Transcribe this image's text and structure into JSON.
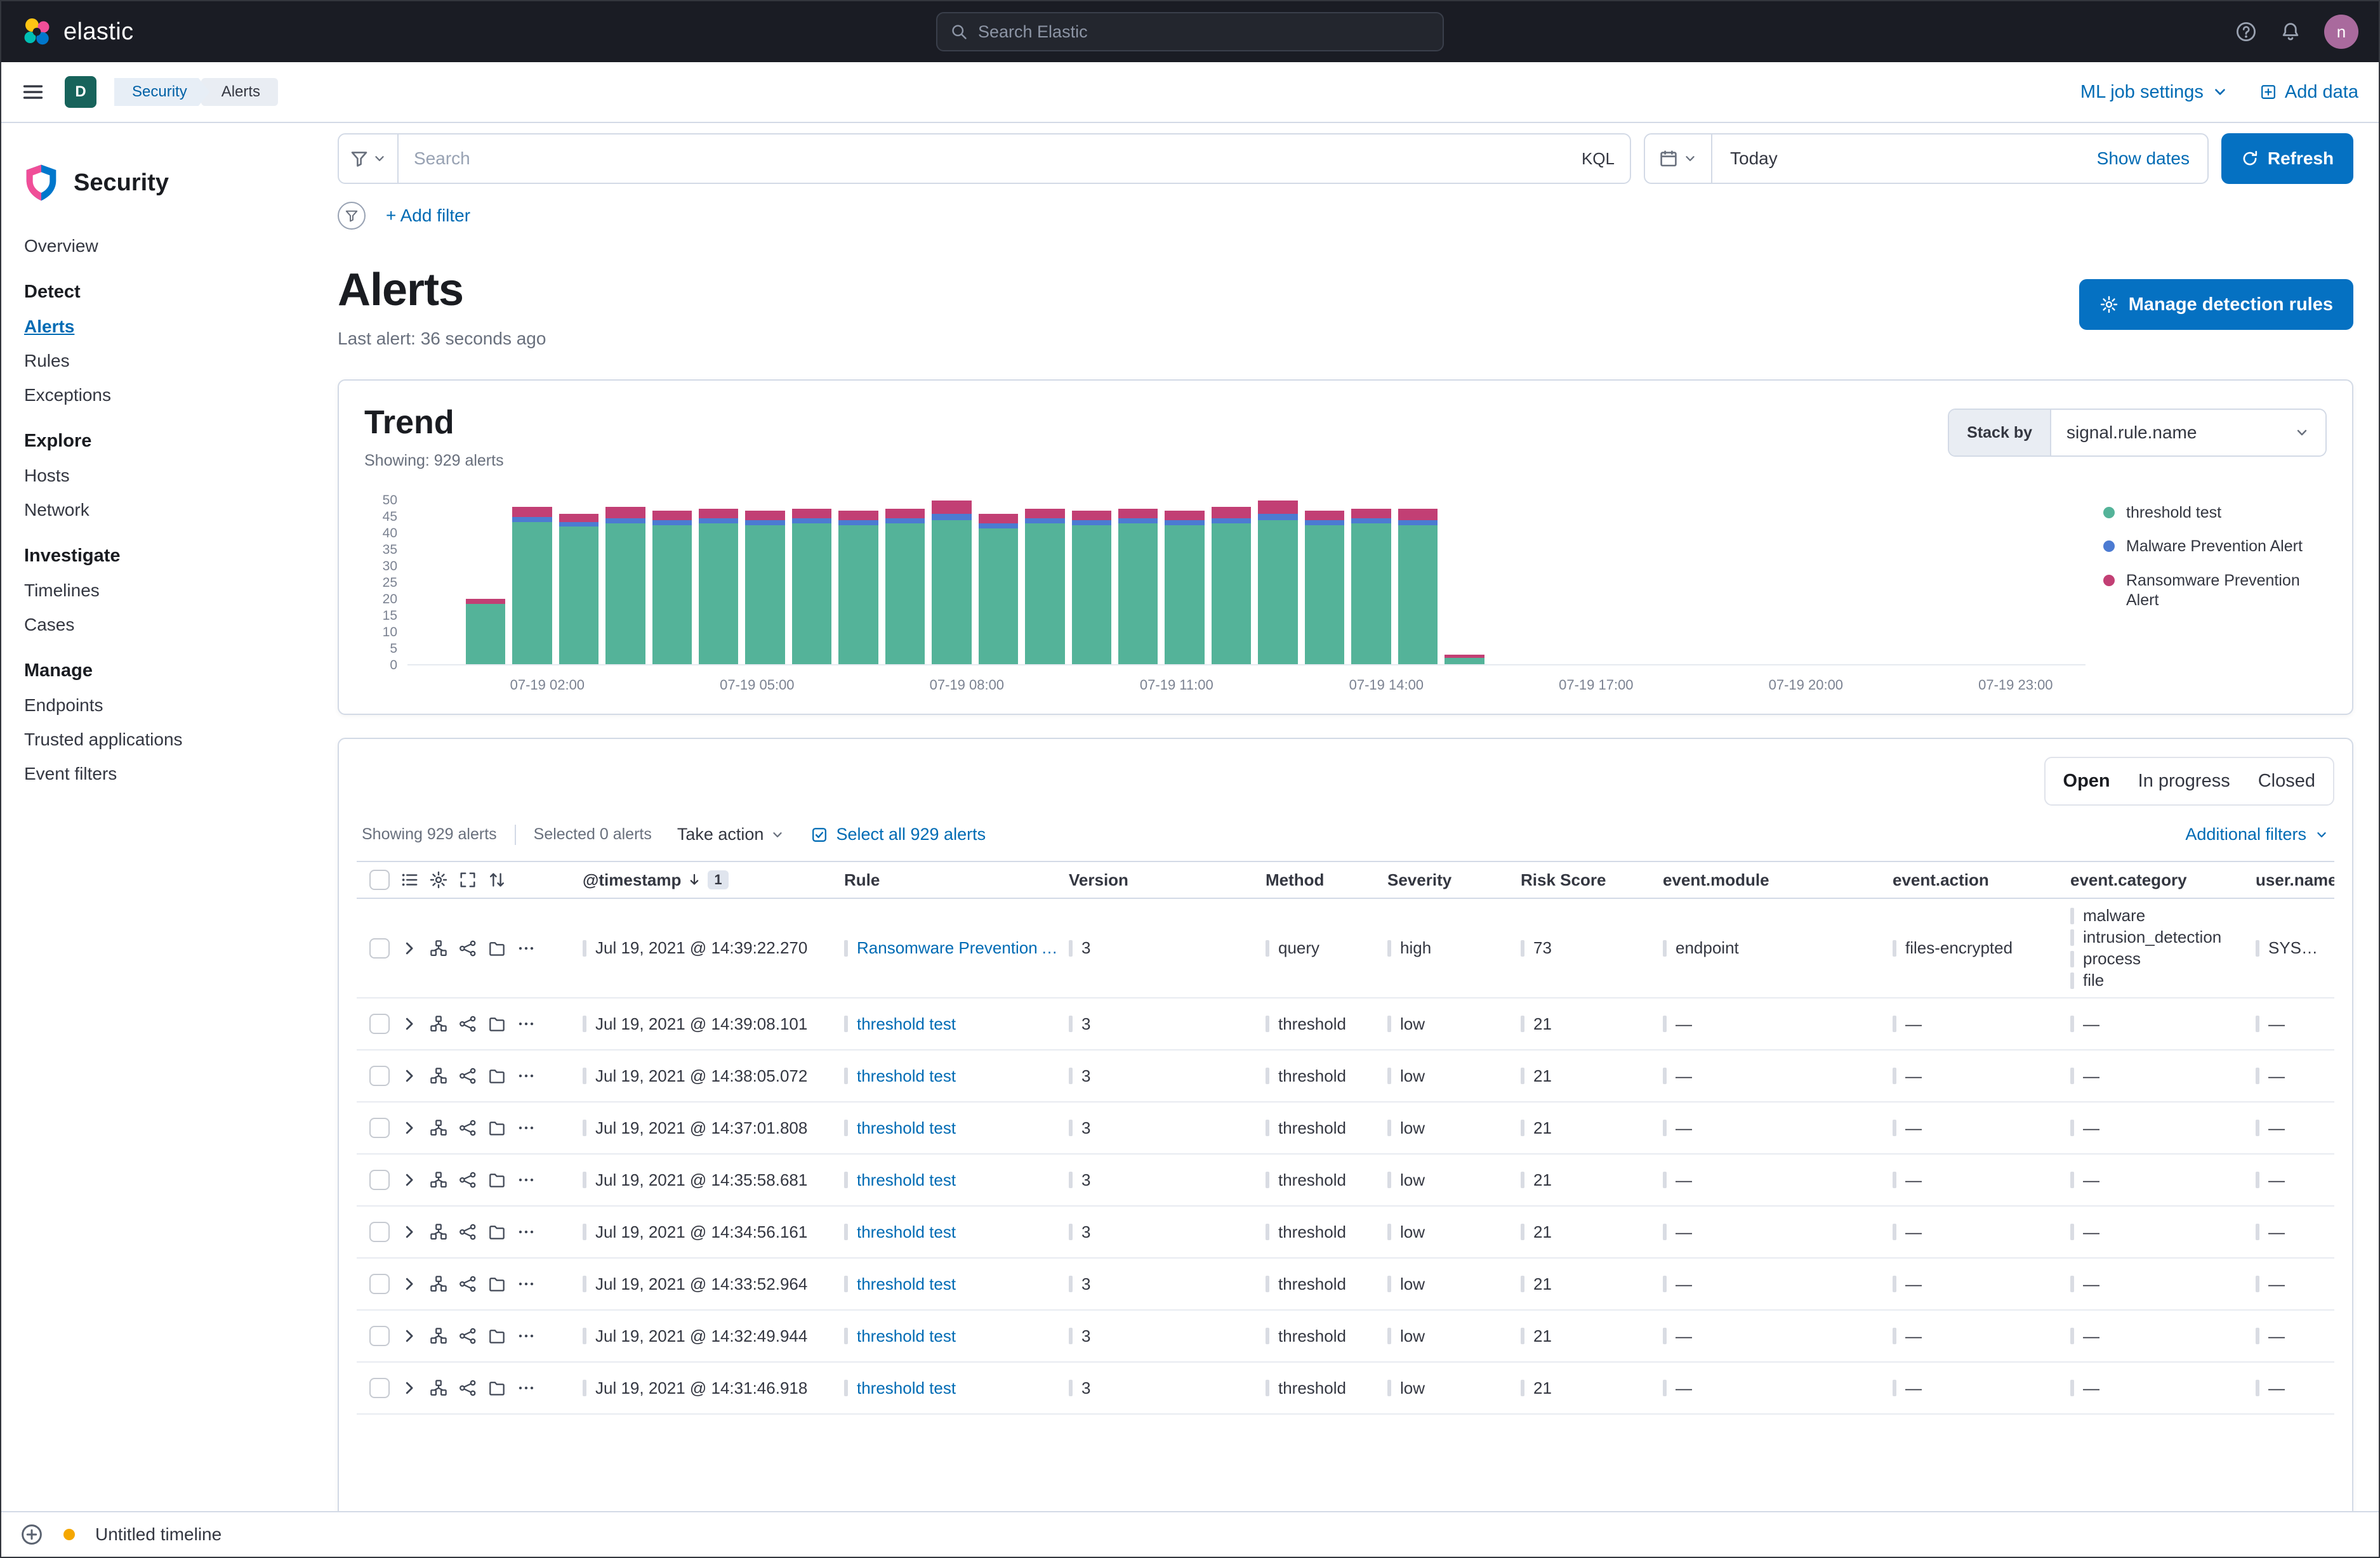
{
  "colors": {
    "primary": "#006BB4",
    "fill_button": "#0571C2",
    "amber": "#F5A700"
  },
  "topbar": {
    "brand": "elastic",
    "search_placeholder": "Search Elastic",
    "avatar_initial": "n"
  },
  "navbar": {
    "deployment_initial": "D",
    "breadcrumbs": [
      "Security",
      "Alerts"
    ],
    "ml_job_settings": "ML job settings",
    "add_data": "Add data"
  },
  "querybar": {
    "search_placeholder": "Search",
    "kql_badge": "KQL",
    "date_value": "Today",
    "show_dates": "Show dates",
    "refresh_label": "Refresh",
    "add_filter": "+ Add filter"
  },
  "sidebar": {
    "title": "Security",
    "groups": [
      {
        "heading": null,
        "items": [
          {
            "label": "Overview",
            "active": false
          }
        ]
      },
      {
        "heading": "Detect",
        "items": [
          {
            "label": "Alerts",
            "active": true
          },
          {
            "label": "Rules",
            "active": false
          },
          {
            "label": "Exceptions",
            "active": false
          }
        ]
      },
      {
        "heading": "Explore",
        "items": [
          {
            "label": "Hosts",
            "active": false
          },
          {
            "label": "Network",
            "active": false
          }
        ]
      },
      {
        "heading": "Investigate",
        "items": [
          {
            "label": "Timelines",
            "active": false
          },
          {
            "label": "Cases",
            "active": false
          }
        ]
      },
      {
        "heading": "Manage",
        "items": [
          {
            "label": "Endpoints",
            "active": false
          },
          {
            "label": "Trusted applications",
            "active": false
          },
          {
            "label": "Event filters",
            "active": false
          }
        ]
      }
    ]
  },
  "page": {
    "title": "Alerts",
    "last_alert": "Last alert: 36 seconds ago",
    "manage_rules_label": "Manage detection rules"
  },
  "trend": {
    "title": "Trend",
    "showing": "Showing: 929 alerts",
    "stack_by_label": "Stack by",
    "stack_by_value": "signal.rule.name"
  },
  "chart_data": {
    "type": "bar",
    "stacked": true,
    "title": "Trend",
    "xlabel": "",
    "ylabel": "",
    "ylim": [
      0,
      50
    ],
    "y_ticks": [
      0,
      5,
      10,
      15,
      20,
      25,
      30,
      35,
      40,
      45,
      50
    ],
    "x_domain_minutes": 1440,
    "bar_width_minutes": 40,
    "x_ticks": [
      {
        "label": "07-19 02:00",
        "minute": 120
      },
      {
        "label": "07-19 05:00",
        "minute": 300
      },
      {
        "label": "07-19 08:00",
        "minute": 480
      },
      {
        "label": "07-19 11:00",
        "minute": 660
      },
      {
        "label": "07-19 14:00",
        "minute": 840
      },
      {
        "label": "07-19 17:00",
        "minute": 1020
      },
      {
        "label": "07-19 20:00",
        "minute": 1200
      },
      {
        "label": "07-19 23:00",
        "minute": 1380
      }
    ],
    "series": [
      {
        "key": "t",
        "name": "threshold test",
        "color": "#54B399"
      },
      {
        "key": "m",
        "name": "Malware Prevention Alert",
        "color": "#4C7BD2"
      },
      {
        "key": "r",
        "name": "Ransomware Prevention Alert",
        "color": "#C23F74"
      }
    ],
    "bars": [
      {
        "minute": 50,
        "t": 18.5,
        "m": 0,
        "r": 1.5
      },
      {
        "minute": 90,
        "t": 43.5,
        "m": 1.5,
        "r": 3
      },
      {
        "minute": 130,
        "t": 42,
        "m": 1.5,
        "r": 2.5
      },
      {
        "minute": 170,
        "t": 43,
        "m": 1.5,
        "r": 3.5
      },
      {
        "minute": 210,
        "t": 42.5,
        "m": 1.5,
        "r": 3
      },
      {
        "minute": 250,
        "t": 43,
        "m": 1.5,
        "r": 3
      },
      {
        "minute": 290,
        "t": 42.5,
        "m": 1.5,
        "r": 3
      },
      {
        "minute": 330,
        "t": 43,
        "m": 1.5,
        "r": 3
      },
      {
        "minute": 370,
        "t": 42.5,
        "m": 1.5,
        "r": 3
      },
      {
        "minute": 410,
        "t": 43,
        "m": 1.5,
        "r": 3
      },
      {
        "minute": 450,
        "t": 44,
        "m": 2,
        "r": 4
      },
      {
        "minute": 490,
        "t": 41.5,
        "m": 1.5,
        "r": 3
      },
      {
        "minute": 530,
        "t": 43,
        "m": 1.5,
        "r": 3
      },
      {
        "minute": 570,
        "t": 42.5,
        "m": 1.5,
        "r": 3
      },
      {
        "minute": 610,
        "t": 43,
        "m": 1.5,
        "r": 3
      },
      {
        "minute": 650,
        "t": 42.5,
        "m": 1.5,
        "r": 3
      },
      {
        "minute": 690,
        "t": 43,
        "m": 1.5,
        "r": 3.5
      },
      {
        "minute": 730,
        "t": 44,
        "m": 2,
        "r": 4
      },
      {
        "minute": 770,
        "t": 42.5,
        "m": 1.5,
        "r": 3
      },
      {
        "minute": 810,
        "t": 43,
        "m": 1.5,
        "r": 3
      },
      {
        "minute": 850,
        "t": 42.5,
        "m": 1.5,
        "r": 3.5
      },
      {
        "minute": 890,
        "t": 2,
        "m": 0,
        "r": 1
      }
    ]
  },
  "table": {
    "status_filters": [
      {
        "label": "Open",
        "active": true
      },
      {
        "label": "In progress",
        "active": false
      },
      {
        "label": "Closed",
        "active": false
      }
    ],
    "showing": "Showing 929 alerts",
    "selected": "Selected 0 alerts",
    "take_action": "Take action",
    "select_all": "Select all 929 alerts",
    "additional_filters": "Additional filters",
    "sort_count_badge": "1",
    "columns": [
      {
        "key": "timestamp",
        "label": "@timestamp",
        "sorted": "desc"
      },
      {
        "key": "rule",
        "label": "Rule"
      },
      {
        "key": "version",
        "label": "Version"
      },
      {
        "key": "method",
        "label": "Method"
      },
      {
        "key": "severity",
        "label": "Severity"
      },
      {
        "key": "risk_score",
        "label": "Risk Score"
      },
      {
        "key": "event_module",
        "label": "event.module"
      },
      {
        "key": "event_action",
        "label": "event.action"
      },
      {
        "key": "event_category",
        "label": "event.category"
      },
      {
        "key": "user_name",
        "label": "user.name"
      }
    ],
    "rows": [
      {
        "timestamp": "Jul 19, 2021 @ 14:39:22.270",
        "rule": "Ransomware Prevention A...",
        "version": "3",
        "method": "query",
        "severity": "high",
        "risk_score": "73",
        "event_module": "endpoint",
        "event_action": "files-encrypted",
        "event_category": [
          "malware",
          "intrusion_detection",
          "process",
          "file"
        ],
        "user_name": "SYSTEM"
      },
      {
        "timestamp": "Jul 19, 2021 @ 14:39:08.101",
        "rule": "threshold test",
        "version": "3",
        "method": "threshold",
        "severity": "low",
        "risk_score": "21",
        "event_module": "—",
        "event_action": "—",
        "event_category": [
          "—"
        ],
        "user_name": "—"
      },
      {
        "timestamp": "Jul 19, 2021 @ 14:38:05.072",
        "rule": "threshold test",
        "version": "3",
        "method": "threshold",
        "severity": "low",
        "risk_score": "21",
        "event_module": "—",
        "event_action": "—",
        "event_category": [
          "—"
        ],
        "user_name": "—"
      },
      {
        "timestamp": "Jul 19, 2021 @ 14:37:01.808",
        "rule": "threshold test",
        "version": "3",
        "method": "threshold",
        "severity": "low",
        "risk_score": "21",
        "event_module": "—",
        "event_action": "—",
        "event_category": [
          "—"
        ],
        "user_name": "—"
      },
      {
        "timestamp": "Jul 19, 2021 @ 14:35:58.681",
        "rule": "threshold test",
        "version": "3",
        "method": "threshold",
        "severity": "low",
        "risk_score": "21",
        "event_module": "—",
        "event_action": "—",
        "event_category": [
          "—"
        ],
        "user_name": "—"
      },
      {
        "timestamp": "Jul 19, 2021 @ 14:34:56.161",
        "rule": "threshold test",
        "version": "3",
        "method": "threshold",
        "severity": "low",
        "risk_score": "21",
        "event_module": "—",
        "event_action": "—",
        "event_category": [
          "—"
        ],
        "user_name": "—"
      },
      {
        "timestamp": "Jul 19, 2021 @ 14:33:52.964",
        "rule": "threshold test",
        "version": "3",
        "method": "threshold",
        "severity": "low",
        "risk_score": "21",
        "event_module": "—",
        "event_action": "—",
        "event_category": [
          "—"
        ],
        "user_name": "—"
      },
      {
        "timestamp": "Jul 19, 2021 @ 14:32:49.944",
        "rule": "threshold test",
        "version": "3",
        "method": "threshold",
        "severity": "low",
        "risk_score": "21",
        "event_module": "—",
        "event_action": "—",
        "event_category": [
          "—"
        ],
        "user_name": "—"
      },
      {
        "timestamp": "Jul 19, 2021 @ 14:31:46.918",
        "rule": "threshold test",
        "version": "3",
        "method": "threshold",
        "severity": "low",
        "risk_score": "21",
        "event_module": "—",
        "event_action": "—",
        "event_category": [
          "—"
        ],
        "user_name": "—"
      }
    ]
  },
  "footer": {
    "timeline_label": "Untitled timeline"
  }
}
